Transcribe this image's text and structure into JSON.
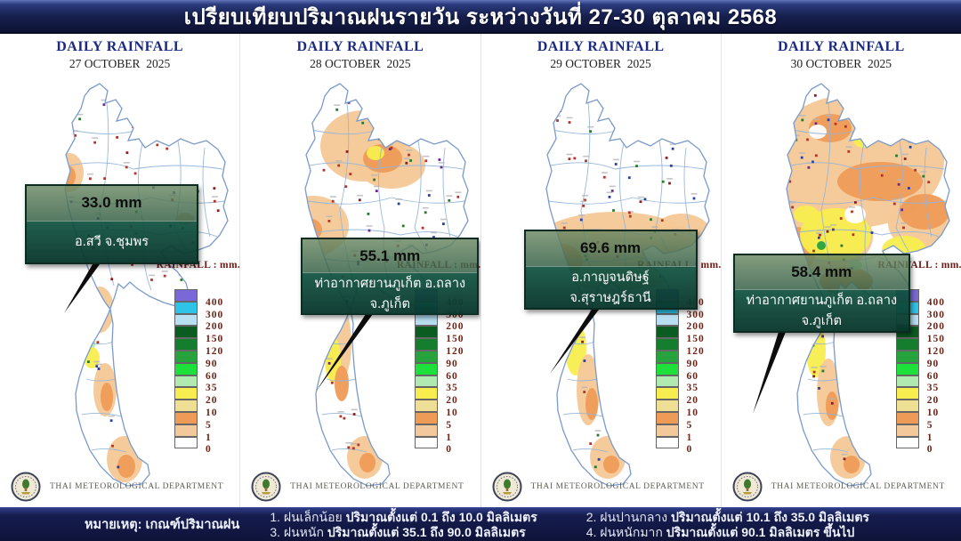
{
  "header": {
    "title": "เปรียบเทียบปริมาณฝนรายวัน ระหว่างวันที่ 27-30 ตุลาคม 2568"
  },
  "department": "THAI METEOROLOGICAL DEPARTMENT",
  "panels": [
    {
      "heading": "DAILY RAINFALL",
      "date": "27 OCTOBER  2025",
      "value": "33.0 mm",
      "location": "อ.สวี จ.ชุมพร"
    },
    {
      "heading": "DAILY RAINFALL",
      "date": "28 OCTOBER  2025",
      "value": "55.1 mm",
      "location": "ท่าอากาศยานภูเก็ต อ.ถลาง จ.ภูเก็ต"
    },
    {
      "heading": "DAILY RAINFALL",
      "date": "29 OCTOBER  2025",
      "value": "69.6 mm",
      "location": "อ.กาญจนดิษฐ์ จ.สุราษฎร์ธานี"
    },
    {
      "heading": "DAILY RAINFALL",
      "date": "30 OCTOBER  2025",
      "value": "58.4 mm",
      "location": "ท่าอากาศยานภูเก็ต อ.ถลาง จ.ภูเก็ต"
    }
  ],
  "legend": {
    "title": "RAINFALL : mm.",
    "labels": [
      "400",
      "300",
      "200",
      "150",
      "120",
      "90",
      "60",
      "35",
      "20",
      "10",
      "5",
      "1",
      "0"
    ],
    "colors": [
      "#7b68d8",
      "#2ec4ea",
      "#b8dff2",
      "#0a5c20",
      "#157d2e",
      "#27a33d",
      "#1ee03a",
      "#b0eab0",
      "#f8ed4f",
      "#efdf95",
      "#ee9b57",
      "#f3c99b",
      "#ffffff"
    ]
  },
  "notes": {
    "label": "หมายเหตุ: เกณฑ์ปริมาณฝน",
    "items": [
      {
        "name": "1. ฝนเล็กน้อย",
        "detail": "ปริมาณตั้งแต่ 0.1 ถึง 10.0 มิลลิเมตร"
      },
      {
        "name": "2. ฝนปานกลาง",
        "detail": "ปริมาณตั้งแต่ 10.1 ถึง 35.0 มิลลิเมตร"
      },
      {
        "name": "3. ฝนหนัก",
        "detail": "ปริมาณตั้งแต่ 35.1 ถึง 90.0 มิลลิเมตร"
      },
      {
        "name": "4. ฝนหนักมาก",
        "detail": "ปริมาณตั้งแต่ 90.1 มิลลิเมตร ขึ้นไป"
      }
    ]
  }
}
